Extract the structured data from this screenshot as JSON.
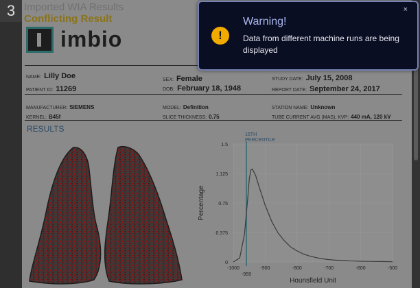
{
  "step_badge": "3",
  "report": {
    "title": "Imported WIA Results",
    "subtitle": "Conflicting Result",
    "logo_text": "imbio",
    "section": "RESULTS",
    "patient": {
      "name_label": "Name:",
      "name": "Lilly Doe",
      "id_label": "Patient ID:",
      "id": "11269",
      "sex_label": "Sex:",
      "sex": "Female",
      "dob_label": "DOB:",
      "dob": "February 18, 1948",
      "study_label": "Study Date:",
      "study_date": "July 15, 2008",
      "report_label": "Report Date:",
      "report_date": "September 24, 2017"
    },
    "scan": {
      "manufacturer_label": "Manufacturer:",
      "manufacturer": "SIEMENS",
      "kernel_label": "Kernel:",
      "kernel": "B45f",
      "model_label": "Model:",
      "model": "Definition",
      "slice_label": "Slice Thickness:",
      "slice": "0.75",
      "station_label": "Station Name:",
      "station": "Unknown",
      "tube_label": "Tube Current Avg (mAs), KVP:",
      "tube": "440 mA, 120 kV"
    }
  },
  "chart_data": {
    "type": "line",
    "xlabel": "Hounsfield Unit",
    "ylabel": "Percentage",
    "xlim": [
      -1000,
      -500
    ],
    "ylim": [
      0,
      1.5
    ],
    "xticks": [
      "-1000",
      "-900",
      "-800",
      "-700",
      "-600",
      "-500"
    ],
    "yticks": [
      "0",
      "0.375",
      "0.75",
      "1.125",
      "1.5"
    ],
    "annotation": {
      "label": "15TH PERCENTILE",
      "x": -959,
      "value_label": "-959"
    },
    "series": [
      {
        "x": [
          -1000,
          -980,
          -965,
          -955,
          -950,
          -945,
          -940,
          -930,
          -920,
          -900,
          -880,
          -860,
          -840,
          -820,
          -800,
          -780,
          -760,
          -740,
          -720,
          -700,
          -680,
          -660,
          -640,
          -620,
          -600,
          -580,
          -560,
          -540,
          -520,
          -500
        ],
        "values": [
          0,
          0.05,
          0.35,
          0.8,
          1.05,
          1.17,
          1.18,
          1.1,
          0.97,
          0.72,
          0.52,
          0.37,
          0.27,
          0.19,
          0.14,
          0.1,
          0.075,
          0.055,
          0.04,
          0.03,
          0.023,
          0.018,
          0.014,
          0.011,
          0.009,
          0.007,
          0.006,
          0.005,
          0.004,
          0.003
        ]
      }
    ],
    "grid": true,
    "colors": {
      "line": "#3a3a3a",
      "marker": "#2f6a72",
      "grid": "#9a9a9a",
      "plot_bg": "#8e8e8e"
    }
  },
  "toast": {
    "title": "Warning!",
    "message": "Data from different machine runs are being displayed",
    "icon": "warning-icon",
    "close": "×",
    "colors": {
      "bg": "#0a0e22",
      "border": "#7482b3",
      "icon": "#f2a900"
    }
  }
}
